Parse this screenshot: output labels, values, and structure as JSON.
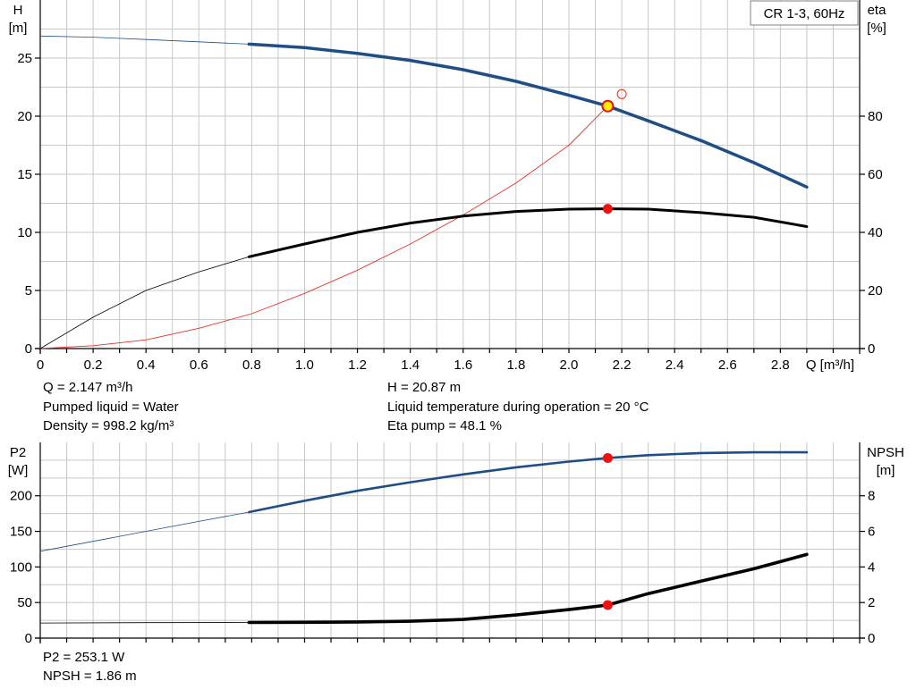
{
  "colors": {
    "head_curve": "#1f4e85",
    "eta_curve": "#e8302a",
    "power_curve": "#1f4e85",
    "npsh_curve": "#000000",
    "operating_point": "#ee1111",
    "duty_point_fill": "#ffee00",
    "grid": "#c8c8c8",
    "background": "#ffffff"
  },
  "chart_data": [
    {
      "type": "line",
      "title": "CR 1-3, 60Hz",
      "xlabel": "Q [m³/h]",
      "ylabel_left": "H\n[m]",
      "ylabel_right": "eta\n[%]",
      "xlim": [
        0,
        3.1
      ],
      "ylim_left": [
        0,
        30
      ],
      "ylim_right": [
        0,
        120
      ],
      "x_ticks": [
        "0",
        "0.2",
        "0.4",
        "0.6",
        "0.8",
        "1.0",
        "1.2",
        "1.4",
        "1.6",
        "1.8",
        "2.0",
        "2.2",
        "2.4",
        "2.6",
        "2.8"
      ],
      "y_ticks_left": [
        "0",
        "5",
        "10",
        "15",
        "20",
        "25"
      ],
      "y_ticks_right": [
        "0",
        "20",
        "40",
        "60",
        "80"
      ],
      "grid": true,
      "series": [
        {
          "key": "head",
          "axis": "left",
          "x": [
            0,
            0.2,
            0.4,
            0.6,
            0.79,
            1.0,
            1.2,
            1.4,
            1.6,
            1.8,
            2.0,
            2.147,
            2.3,
            2.5,
            2.7,
            2.9
          ],
          "y": [
            26.9,
            26.8,
            26.6,
            26.4,
            26.2,
            25.9,
            25.4,
            24.8,
            24.0,
            23.0,
            21.8,
            20.87,
            19.6,
            17.9,
            16.0,
            13.9
          ]
        },
        {
          "key": "eta",
          "axis": "right",
          "x": [
            0,
            0.2,
            0.4,
            0.6,
            0.8,
            1.0,
            1.2,
            1.4,
            1.6,
            1.8,
            2.0,
            2.147
          ],
          "y": [
            0,
            1,
            3,
            7,
            12,
            19,
            27,
            36,
            46,
            57,
            70,
            83.5
          ]
        },
        {
          "key": "eta_pump",
          "axis": "left",
          "x": [
            0,
            0.2,
            0.4,
            0.6,
            0.79,
            1.0,
            1.2,
            1.4,
            1.6,
            1.8,
            2.0,
            2.147,
            2.3,
            2.5,
            2.7,
            2.9
          ],
          "y": [
            0,
            2.7,
            5.0,
            6.6,
            7.9,
            9.0,
            10.0,
            10.8,
            11.4,
            11.8,
            12.0,
            12.03,
            12.0,
            11.7,
            11.3,
            10.5
          ]
        }
      ],
      "operating_points": [
        {
          "series": "head",
          "x": 2.147,
          "y": 20.87
        },
        {
          "series": "eta_pump",
          "x": 2.147,
          "y": 12.03
        }
      ],
      "open_marker": {
        "x": 2.2,
        "y": 21.9
      },
      "curve_thin_until_x": 0.79
    },
    {
      "type": "line",
      "xlim": [
        0,
        3.1
      ],
      "ylabel_left": "P2\n[W]",
      "ylabel_right": "NPSH\n[m]",
      "ylim_left": [
        0,
        275
      ],
      "ylim_right": [
        0,
        11
      ],
      "y_ticks_left": [
        "0",
        "50",
        "100",
        "150",
        "200"
      ],
      "y_ticks_right": [
        "0",
        "2",
        "4",
        "6",
        "8"
      ],
      "grid": true,
      "series": [
        {
          "key": "p2",
          "axis": "left",
          "x": [
            0,
            0.2,
            0.4,
            0.6,
            0.79,
            1.0,
            1.2,
            1.4,
            1.6,
            1.8,
            2.0,
            2.147,
            2.3,
            2.5,
            2.7,
            2.9
          ],
          "y": [
            122,
            136,
            150,
            164,
            177,
            193,
            207,
            219,
            230,
            240,
            248,
            253.1,
            257,
            260,
            261,
            261
          ]
        },
        {
          "key": "npsh",
          "axis": "right",
          "x": [
            0,
            0.4,
            0.79,
            1.0,
            1.2,
            1.4,
            1.6,
            1.8,
            2.0,
            2.147,
            2.3,
            2.5,
            2.7,
            2.9
          ],
          "y": [
            0.85,
            0.87,
            0.88,
            0.89,
            0.91,
            0.95,
            1.05,
            1.3,
            1.6,
            1.86,
            2.5,
            3.2,
            3.9,
            4.7
          ]
        }
      ],
      "operating_points": [
        {
          "series": "p2",
          "x": 2.147,
          "y": 253.1
        },
        {
          "series": "npsh",
          "x": 2.147,
          "y": 1.86
        }
      ],
      "curve_thin_until_x": 0.79
    }
  ],
  "info_top_left": {
    "q": "Q = 2.147 m³/h",
    "liquid": "Pumped liquid = Water",
    "density": "Density = 998.2 kg/m³"
  },
  "info_top_right": {
    "h": "H = 20.87 m",
    "temp": "Liquid temperature during operation = 20 °C",
    "eta": "Eta pump = 48.1 %"
  },
  "info_bottom": {
    "p2": "P2 = 253.1 W",
    "npsh": "NPSH = 1.86 m"
  }
}
